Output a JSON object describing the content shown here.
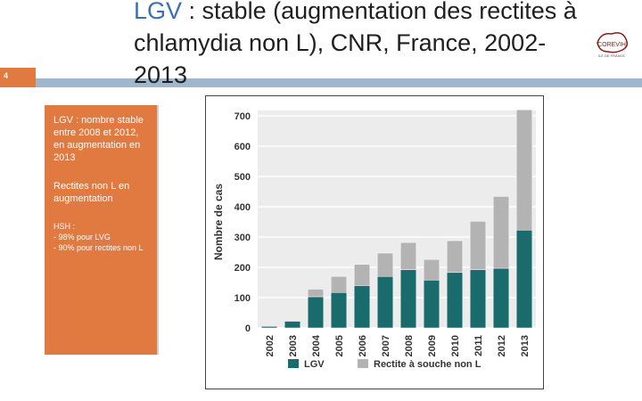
{
  "slide": {
    "number": "4",
    "title_prefix": "LGV",
    "title_rest": " : stable (augmentation des rectites à chlamydia non L), CNR, France, 2002-2013",
    "logo_text": "COREVIH",
    "logo_subtext": "ILE DE FRANCE"
  },
  "side_panel": {
    "para1": "LGV : nombre stable entre 2008 et 2012, en augmentation en 2013",
    "para2": "Rectites non L en augmentation",
    "para3_title": "HSH :",
    "para3_line1": "- 98% pour LVG",
    "para3_line2": "- 90% pour rectites non L"
  },
  "colors": {
    "accent_orange": "#e07a40",
    "bar_blue": "#9fb6cd",
    "lgv": "#1a6b6b",
    "non_l": "#b3b3b3"
  },
  "chart_data": {
    "type": "bar",
    "stacked": true,
    "categories": [
      "2002",
      "2003",
      "2004",
      "2005",
      "2006",
      "2007",
      "2008",
      "2009",
      "2010",
      "2011",
      "2012",
      "2013"
    ],
    "series": [
      {
        "name": "LGV",
        "values": [
          5,
          22,
          103,
          117,
          140,
          170,
          192,
          158,
          183,
          192,
          197,
          323
        ]
      },
      {
        "name": "Rectite à souche non L",
        "values": [
          0,
          0,
          25,
          53,
          70,
          77,
          90,
          68,
          105,
          160,
          237,
          397
        ]
      }
    ],
    "ylabel": "Nombre de cas",
    "xlabel": "",
    "ylim": [
      0,
      700
    ],
    "yticks": [
      0,
      100,
      200,
      300,
      400,
      500,
      600,
      700
    ],
    "grid": true,
    "legend": "bottom"
  }
}
